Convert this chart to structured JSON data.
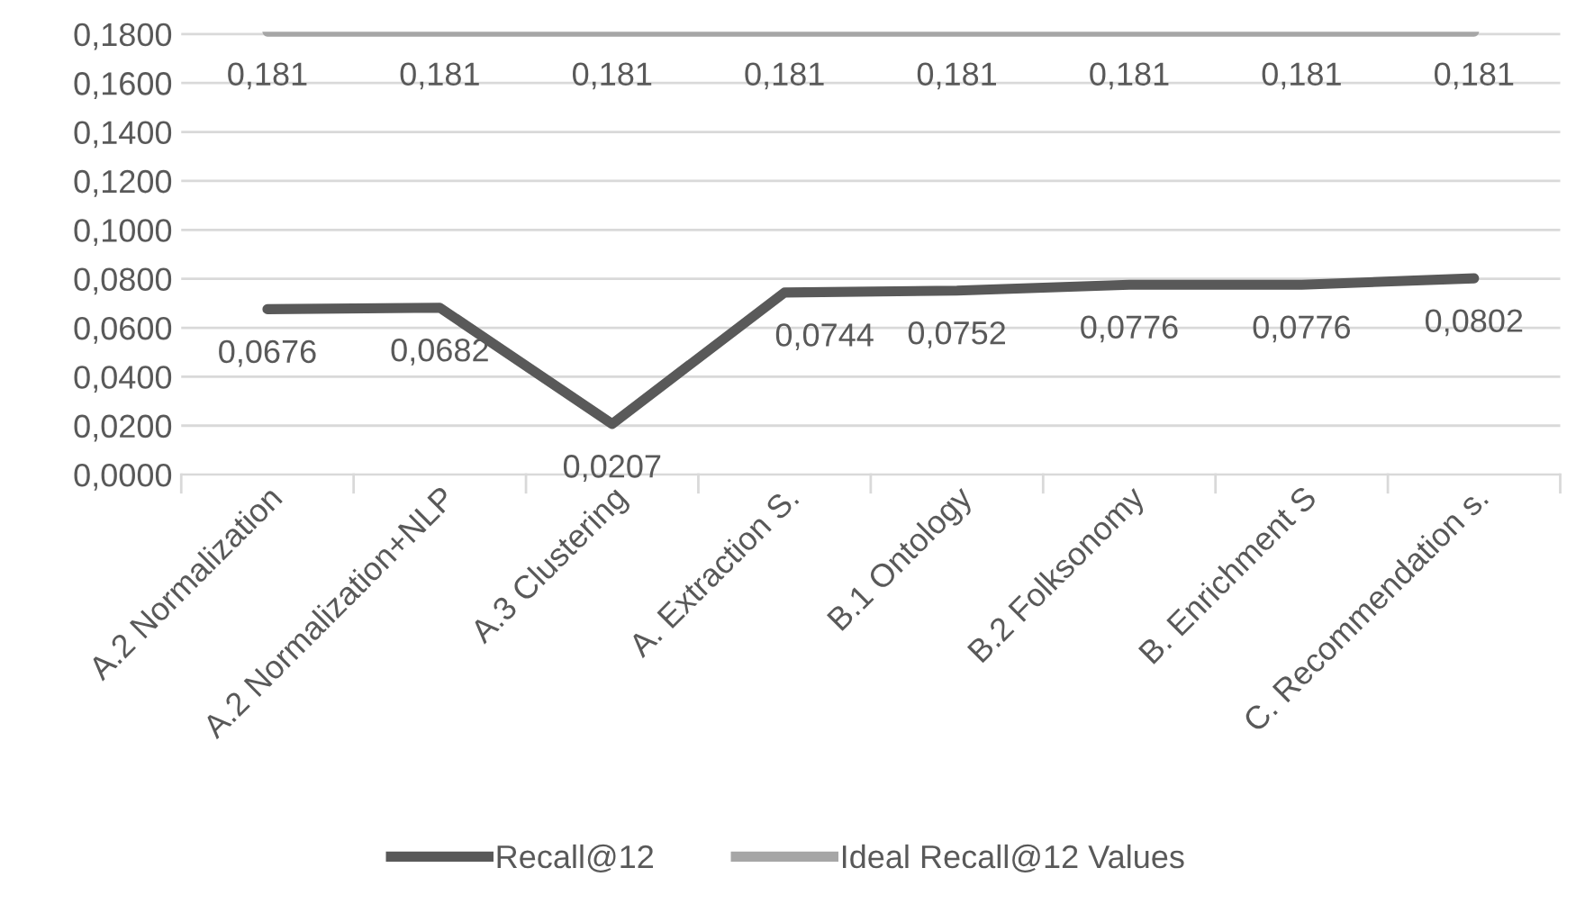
{
  "chart_data": {
    "type": "line",
    "categories": [
      "A.2 Normalization",
      "A.2 Normalization+NLP",
      "A.3 Clustering",
      "A. Extraction S.",
      "B.1 Ontology",
      "B.2 Folksonomy",
      "B. Enrichment S",
      "C. Recommendation s."
    ],
    "series": [
      {
        "name": "Recall@12",
        "color": "#595959",
        "values": [
          0.0676,
          0.0682,
          0.0207,
          0.0744,
          0.0752,
          0.0776,
          0.0776,
          0.0802
        ],
        "value_labels": [
          "0,0676",
          "0,0682",
          "0,0207",
          "0,0744",
          "0,0752",
          "0,0776",
          "0,0776",
          "0,0802"
        ]
      },
      {
        "name": "Ideal Recall@12 Values",
        "color": "#a6a6a6",
        "values": [
          0.181,
          0.181,
          0.181,
          0.181,
          0.181,
          0.181,
          0.181,
          0.181
        ],
        "value_labels": [
          "0,181",
          "0,181",
          "0,181",
          "0,181",
          "0,181",
          "0,181",
          "0,181",
          "0,181"
        ]
      }
    ],
    "ylim": [
      0,
      0.181
    ],
    "yticks": [
      {
        "value": 0,
        "label": "0,0000"
      },
      {
        "value": 0.02,
        "label": "0,0200"
      },
      {
        "value": 0.04,
        "label": "0,0400"
      },
      {
        "value": 0.06,
        "label": "0,0600"
      },
      {
        "value": 0.08,
        "label": "0,0800"
      },
      {
        "value": 0.1,
        "label": "0,1000"
      },
      {
        "value": 0.12,
        "label": "0,1200"
      },
      {
        "value": 0.14,
        "label": "0,1400"
      },
      {
        "value": 0.16,
        "label": "0,1600"
      },
      {
        "value": 0.18,
        "label": "0,1800"
      }
    ],
    "grid": "y",
    "legend": "bottom",
    "marker": "none",
    "line_style": "solid"
  }
}
